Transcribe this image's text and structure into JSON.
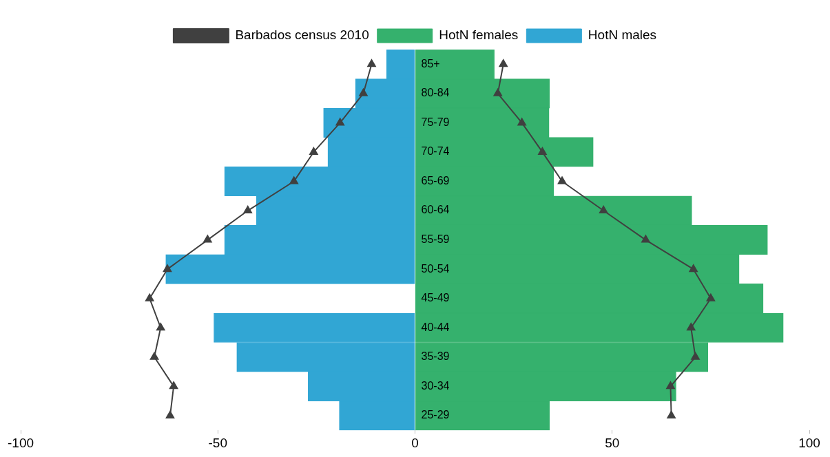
{
  "chart_data": {
    "type": "bar",
    "orientation": "horizontal",
    "stacked": true,
    "categories": [
      "85+",
      "80-84",
      "75-79",
      "70-74",
      "65-69",
      "60-64",
      "55-59",
      "50-54",
      "45-49",
      "40-44",
      "35-39",
      "30-34",
      "25-29"
    ],
    "series": [
      {
        "name": "HotN females",
        "color": "#35b16d",
        "values": [
          20.1,
          34.1,
          34,
          45.2,
          35.2,
          70.2,
          89.4,
          82.2,
          88.3,
          93.4,
          74.3,
          66.2,
          34.1
        ]
      },
      {
        "name": "HotN males",
        "color": "#31a6d4",
        "values": [
          -7.2,
          -15.1,
          -23.2,
          -22.1,
          -48.3,
          -40.2,
          -48.3,
          -63.2,
          null,
          -51,
          -45.2,
          -27.1,
          -19.2
        ]
      },
      {
        "name": "Barbados census 2010",
        "type": "line",
        "color": "#404040",
        "marker": "triangle",
        "values": [
          22.4,
          21,
          27.1,
          32.3,
          37.3,
          47.8,
          58.5,
          70.6,
          75,
          70,
          71.1,
          64.8,
          65
        ]
      },
      {
        "type": "line",
        "color": "#404040",
        "marker": "triangle",
        "values": [
          -11,
          -13.1,
          -19,
          -25.7,
          -30.7,
          -42.4,
          -52.6,
          -62.8,
          -67.3,
          -64.5,
          -66.1,
          -61.2,
          -62.1
        ]
      }
    ],
    "xlim": [
      -100,
      100
    ],
    "xticks": [
      -100,
      -50,
      0,
      50,
      100
    ],
    "grid": false,
    "legend": "top"
  }
}
